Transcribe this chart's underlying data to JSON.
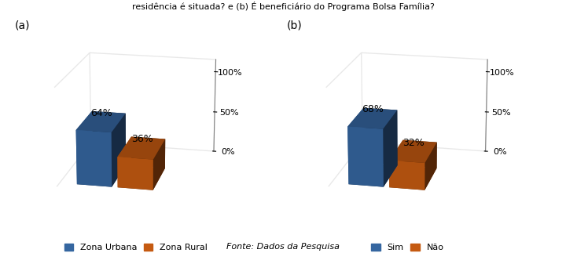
{
  "chart_a": {
    "label": "(a)",
    "values": [
      0.64,
      0.36
    ],
    "colors": [
      "#3566a0",
      "#c55a11"
    ],
    "dark_colors": [
      "#1e3f6b",
      "#8b3d0a"
    ],
    "labels": [
      "64%",
      "36%"
    ],
    "legend": [
      "Zona Urbana",
      "Zona Rural"
    ],
    "yticks": [
      0.0,
      0.5,
      1.0
    ],
    "yticklabels": [
      "0%",
      "50%",
      "100%"
    ]
  },
  "chart_b": {
    "label": "(b)",
    "values": [
      0.68,
      0.32
    ],
    "colors": [
      "#3566a0",
      "#c55a11"
    ],
    "dark_colors": [
      "#1e3f6b",
      "#8b3d0a"
    ],
    "labels": [
      "68%",
      "32%"
    ],
    "legend": [
      "Sim",
      "Não"
    ],
    "yticks": [
      0.0,
      0.5,
      1.0
    ],
    "yticklabels": [
      "0%",
      "50%",
      "100%"
    ]
  },
  "top_text": "residência é situada? e (b) É beneficiário do Programa Bolsa Família?",
  "footer": "Fonte: Dados da Pesquisa",
  "bg_color": "#ffffff",
  "figure_size": [
    7.2,
    3.23
  ],
  "dpi": 100
}
